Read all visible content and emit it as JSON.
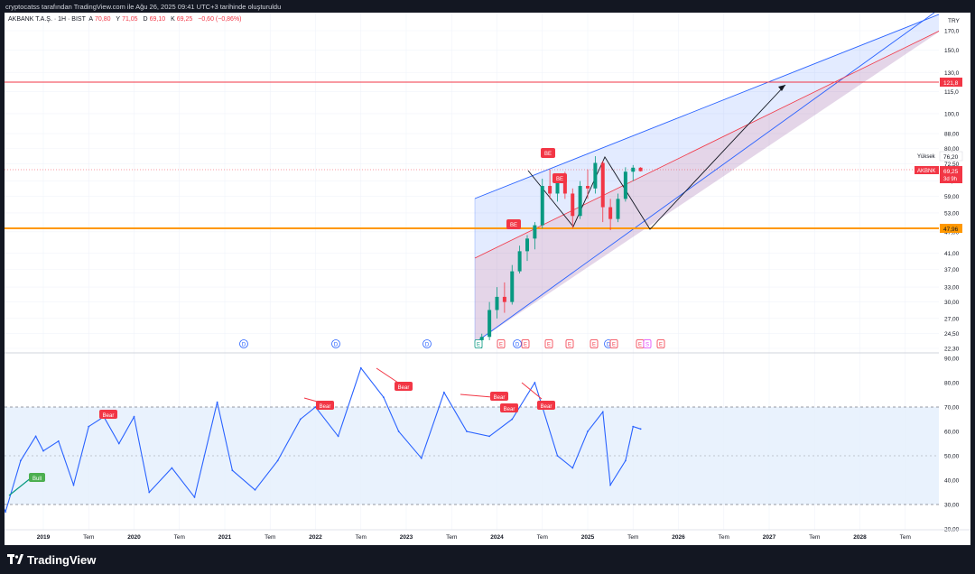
{
  "header": {
    "caption": "cryptocatss tarafından TradingView.com ile Ağu 26, 2025 09:41 UTC+3 tarihinde oluşturuldu"
  },
  "legend": {
    "symbol": "AKBANK T.A.Ş. · 1H · BIST",
    "o_label": "A",
    "o_value": "70,80",
    "h_label": "Y",
    "h_value": "71,05",
    "l_label": "D",
    "l_value": "69,10",
    "c_label": "K",
    "c_value": "69,25",
    "change": "−0,60 (−0,86%)"
  },
  "footer": {
    "brand": "TradingView"
  },
  "colors": {
    "bg": "#131722",
    "up": "#089981",
    "down": "#f23645",
    "rsi": "#2962ff",
    "channel_blue": "#2962ff",
    "channel_red": "#f23645",
    "support": "#ff9800"
  },
  "chart_data": {
    "type": "line",
    "currency": "TRY",
    "price_axis_ticks": [
      "170,0",
      "150,0",
      "130,0",
      "115,0",
      "100,0",
      "88,00",
      "80,00",
      "72,50",
      "65,00",
      "59,00",
      "53,00",
      "47,00",
      "41,00",
      "37,00",
      "33,00",
      "30,00",
      "27,00",
      "24,50",
      "22,30"
    ],
    "price_axis_labels": {
      "resistance": "121,8",
      "high_caption": "Yüksek",
      "high": "76,20",
      "symbol_tag": "AKBNK",
      "last": "69,25",
      "countdown": "3d 9h",
      "support": "47,96"
    },
    "horizontal_levels": [
      121.8,
      47.96
    ],
    "rsi_axis_ticks": [
      "90,00",
      "80,00",
      "70,00",
      "60,00",
      "50,00",
      "40,00",
      "30,00",
      "20,00"
    ],
    "rsi_band": [
      30,
      70
    ],
    "time_axis": [
      "2019",
      "Tem",
      "2020",
      "Tem",
      "2021",
      "Tem",
      "2022",
      "Tem",
      "2023",
      "Tem",
      "2024",
      "Tem",
      "2025",
      "Tem",
      "2026",
      "Tem",
      "2027",
      "Tem",
      "2028",
      "Tem"
    ],
    "candles_approx": [
      {
        "t": "2023-11",
        "o": 23.5,
        "h": 24.5,
        "l": 22.3,
        "c": 24.0
      },
      {
        "t": "2023-12",
        "o": 24.0,
        "h": 30.0,
        "l": 23.5,
        "c": 28.5
      },
      {
        "t": "2024-01",
        "o": 28.5,
        "h": 33.0,
        "l": 27.0,
        "c": 31.0
      },
      {
        "t": "2024-02",
        "o": 31.0,
        "h": 34.0,
        "l": 28.0,
        "c": 30.0
      },
      {
        "t": "2024-03",
        "o": 30.0,
        "h": 38.0,
        "l": 29.5,
        "c": 36.5
      },
      {
        "t": "2024-04",
        "o": 36.5,
        "h": 43.0,
        "l": 36.0,
        "c": 41.5
      },
      {
        "t": "2024-05",
        "o": 41.5,
        "h": 46.0,
        "l": 39.0,
        "c": 45.0
      },
      {
        "t": "2024-06",
        "o": 45.0,
        "h": 50.0,
        "l": 42.0,
        "c": 49.0
      },
      {
        "t": "2024-07",
        "o": 49.0,
        "h": 66.0,
        "l": 48.0,
        "c": 63.0
      },
      {
        "t": "2024-08",
        "o": 63.0,
        "h": 70.0,
        "l": 58.0,
        "c": 60.0
      },
      {
        "t": "2024-09",
        "o": 60.0,
        "h": 68.0,
        "l": 57.0,
        "c": 66.0
      },
      {
        "t": "2024-10",
        "o": 66.0,
        "h": 69.0,
        "l": 58.0,
        "c": 60.0
      },
      {
        "t": "2024-11",
        "o": 60.0,
        "h": 62.0,
        "l": 48.0,
        "c": 52.0
      },
      {
        "t": "2024-12",
        "o": 52.0,
        "h": 65.0,
        "l": 51.0,
        "c": 63.0
      },
      {
        "t": "2025-01",
        "o": 63.0,
        "h": 70.0,
        "l": 58.0,
        "c": 62.0
      },
      {
        "t": "2025-02",
        "o": 62.0,
        "h": 76.2,
        "l": 60.0,
        "c": 73.0
      },
      {
        "t": "2025-03",
        "o": 73.0,
        "h": 74.0,
        "l": 50.0,
        "c": 55.0
      },
      {
        "t": "2025-04",
        "o": 55.0,
        "h": 58.0,
        "l": 47.5,
        "c": 51.0
      },
      {
        "t": "2025-05",
        "o": 51.0,
        "h": 60.0,
        "l": 50.0,
        "c": 58.0
      },
      {
        "t": "2025-06",
        "o": 58.0,
        "h": 71.0,
        "l": 57.0,
        "c": 69.0
      },
      {
        "t": "2025-07",
        "o": 69.0,
        "h": 72.0,
        "l": 65.0,
        "c": 70.8
      },
      {
        "t": "2025-08",
        "o": 70.8,
        "h": 71.05,
        "l": 69.1,
        "c": 69.25
      }
    ],
    "rsi_approx": [
      [
        "2018-07",
        34
      ],
      [
        "2018-08",
        27
      ],
      [
        "2018-10",
        48
      ],
      [
        "2018-12",
        58
      ],
      [
        "2019-01",
        52
      ],
      [
        "2019-03",
        56
      ],
      [
        "2019-05",
        38
      ],
      [
        "2019-07",
        62
      ],
      [
        "2019-09",
        66
      ],
      [
        "2019-11",
        55
      ],
      [
        "2020-01",
        66
      ],
      [
        "2020-03",
        35
      ],
      [
        "2020-06",
        45
      ],
      [
        "2020-09",
        33
      ],
      [
        "2020-12",
        72
      ],
      [
        "2021-02",
        44
      ],
      [
        "2021-05",
        36
      ],
      [
        "2021-08",
        48
      ],
      [
        "2021-11",
        65
      ],
      [
        "2022-01",
        70
      ],
      [
        "2022-04",
        58
      ],
      [
        "2022-07",
        86
      ],
      [
        "2022-10",
        74
      ],
      [
        "2022-12",
        60
      ],
      [
        "2023-03",
        49
      ],
      [
        "2023-06",
        76
      ],
      [
        "2023-09",
        60
      ],
      [
        "2023-12",
        58
      ],
      [
        "2024-03",
        65
      ],
      [
        "2024-06",
        80
      ],
      [
        "2024-07",
        70
      ],
      [
        "2024-09",
        50
      ],
      [
        "2024-11",
        45
      ],
      [
        "2025-01",
        60
      ],
      [
        "2025-03",
        68
      ],
      [
        "2025-04",
        38
      ],
      [
        "2025-06",
        48
      ],
      [
        "2025-07",
        62
      ],
      [
        "2025-08",
        61
      ]
    ],
    "signals": {
      "price": [
        "BE",
        "BE",
        "BE"
      ],
      "rsi": [
        "Bull",
        "Bear",
        "Bear",
        "Bear",
        "Bear",
        "Bear",
        "Bear"
      ]
    },
    "event_markers": [
      "D",
      "D",
      "D",
      "E",
      "E",
      "D",
      "E",
      "E",
      "E",
      "E",
      "D",
      "E",
      "E",
      "S",
      "E"
    ]
  }
}
